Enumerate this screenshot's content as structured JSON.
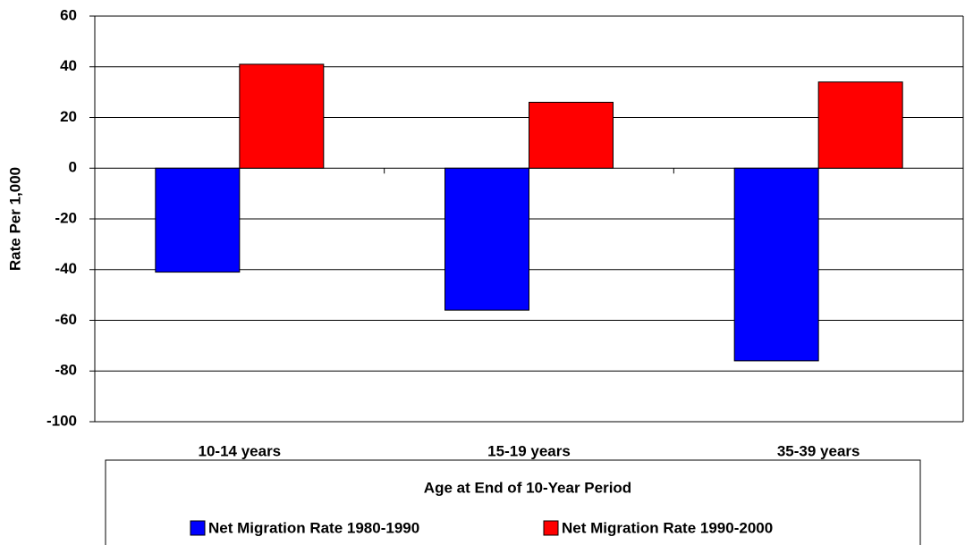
{
  "chart_data": {
    "type": "bar",
    "x_label": "Age at End of 10-Year Period",
    "y_label": "Rate Per 1,000",
    "categories": [
      "10-14 years",
      "15-19 years",
      "35-39 years"
    ],
    "series": [
      {
        "name": "Net Migration Rate 1980-1990",
        "color": "#0000ff",
        "values": [
          -41,
          -56,
          -76
        ]
      },
      {
        "name": "Net Migration Rate 1990-2000",
        "color": "#ff0000",
        "values": [
          41,
          26,
          34
        ]
      }
    ],
    "ylim": [
      -100,
      60
    ],
    "yticks": [
      -100,
      -80,
      -60,
      -40,
      -20,
      0,
      20,
      40,
      60
    ],
    "grid": true,
    "legend": "bottom"
  }
}
